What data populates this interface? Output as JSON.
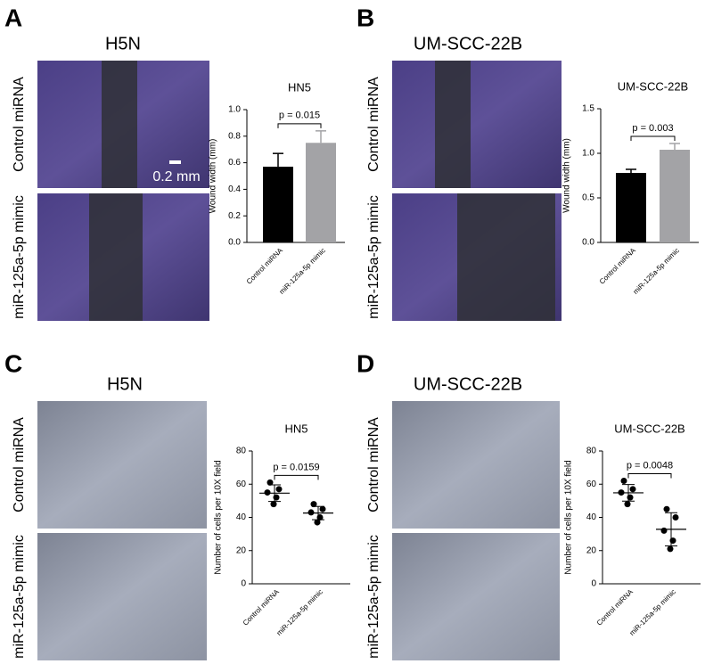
{
  "panels": [
    {
      "letter": "A",
      "title": "H5N",
      "image_labels": [
        "Control miRNA",
        "miR-125a-5p mimic"
      ],
      "scale_bar": "0.2 mm"
    },
    {
      "letter": "B",
      "title": "UM-SCC-22B",
      "image_labels": [
        "Control miRNA",
        "miR-125a-5p mimic"
      ]
    },
    {
      "letter": "C",
      "title": "H5N",
      "image_labels": [
        "Control miRNA",
        "miR-125a-5p mimic"
      ]
    },
    {
      "letter": "D",
      "title": "UM-SCC-22B",
      "image_labels": [
        "Control miRNA",
        "miR-125a-5p mimic"
      ]
    }
  ],
  "chart_data": [
    {
      "type": "bar",
      "title": "HN5",
      "y_label": "Wound width  (mm)",
      "categories": [
        "Control miRNA",
        "miR-125a-5p mimic"
      ],
      "values": [
        0.57,
        0.75
      ],
      "errors": [
        0.1,
        0.09
      ],
      "colors": [
        "#000000",
        "#a3a3a6"
      ],
      "ylim": [
        0,
        1
      ],
      "yticks": [
        {
          "value": 0,
          "label": "0.0"
        },
        0.2,
        0.4,
        0.6,
        0.8,
        {
          "value": 1,
          "label": "1.0"
        }
      ],
      "annotation": "p = 0.015"
    },
    {
      "type": "bar",
      "title": "UM-SCC-22B",
      "y_label": "Wound width  (mm)",
      "categories": [
        "Control miRNA",
        "miR-125a-5p mimic"
      ],
      "values": [
        0.78,
        1.04
      ],
      "errors": [
        0.04,
        0.07
      ],
      "colors": [
        "#000000",
        "#a3a3a6"
      ],
      "ylim": [
        0,
        1.5
      ],
      "yticks": [
        {
          "value": 0,
          "label": "0.0"
        },
        0.5,
        {
          "value": 1,
          "label": "1.0"
        },
        1.5
      ],
      "annotation": "p = 0.003"
    },
    {
      "type": "dot",
      "title": "HN5",
      "y_label": "Number of cells per 10X field",
      "categories": [
        "Control miRNA",
        "miR-125a-5p mimic"
      ],
      "values": [
        [
          61,
          57,
          55,
          52,
          48
        ],
        [
          48,
          45,
          43,
          40,
          37
        ]
      ],
      "means": [
        54.6,
        42.6
      ],
      "errors": [
        5,
        4
      ],
      "color": "#000000",
      "ylim": [
        0,
        80
      ],
      "yticks": [
        0,
        20,
        40,
        60,
        80
      ],
      "annotation": "p = 0.0159"
    },
    {
      "type": "dot",
      "title": "UM-SCC-22B",
      "y_label": "Number of cells per 10X field",
      "categories": [
        "Control miRNA",
        "miR-125a-5p mimic"
      ],
      "values": [
        [
          62,
          57,
          55,
          52,
          48
        ],
        [
          45,
          40,
          32,
          26,
          21
        ]
      ],
      "means": [
        54.8,
        32.8
      ],
      "errors": [
        5,
        10
      ],
      "color": "#000000",
      "ylim": [
        0,
        80
      ],
      "yticks": [
        0,
        20,
        40,
        60,
        80
      ],
      "annotation": "p = 0.0048"
    }
  ]
}
